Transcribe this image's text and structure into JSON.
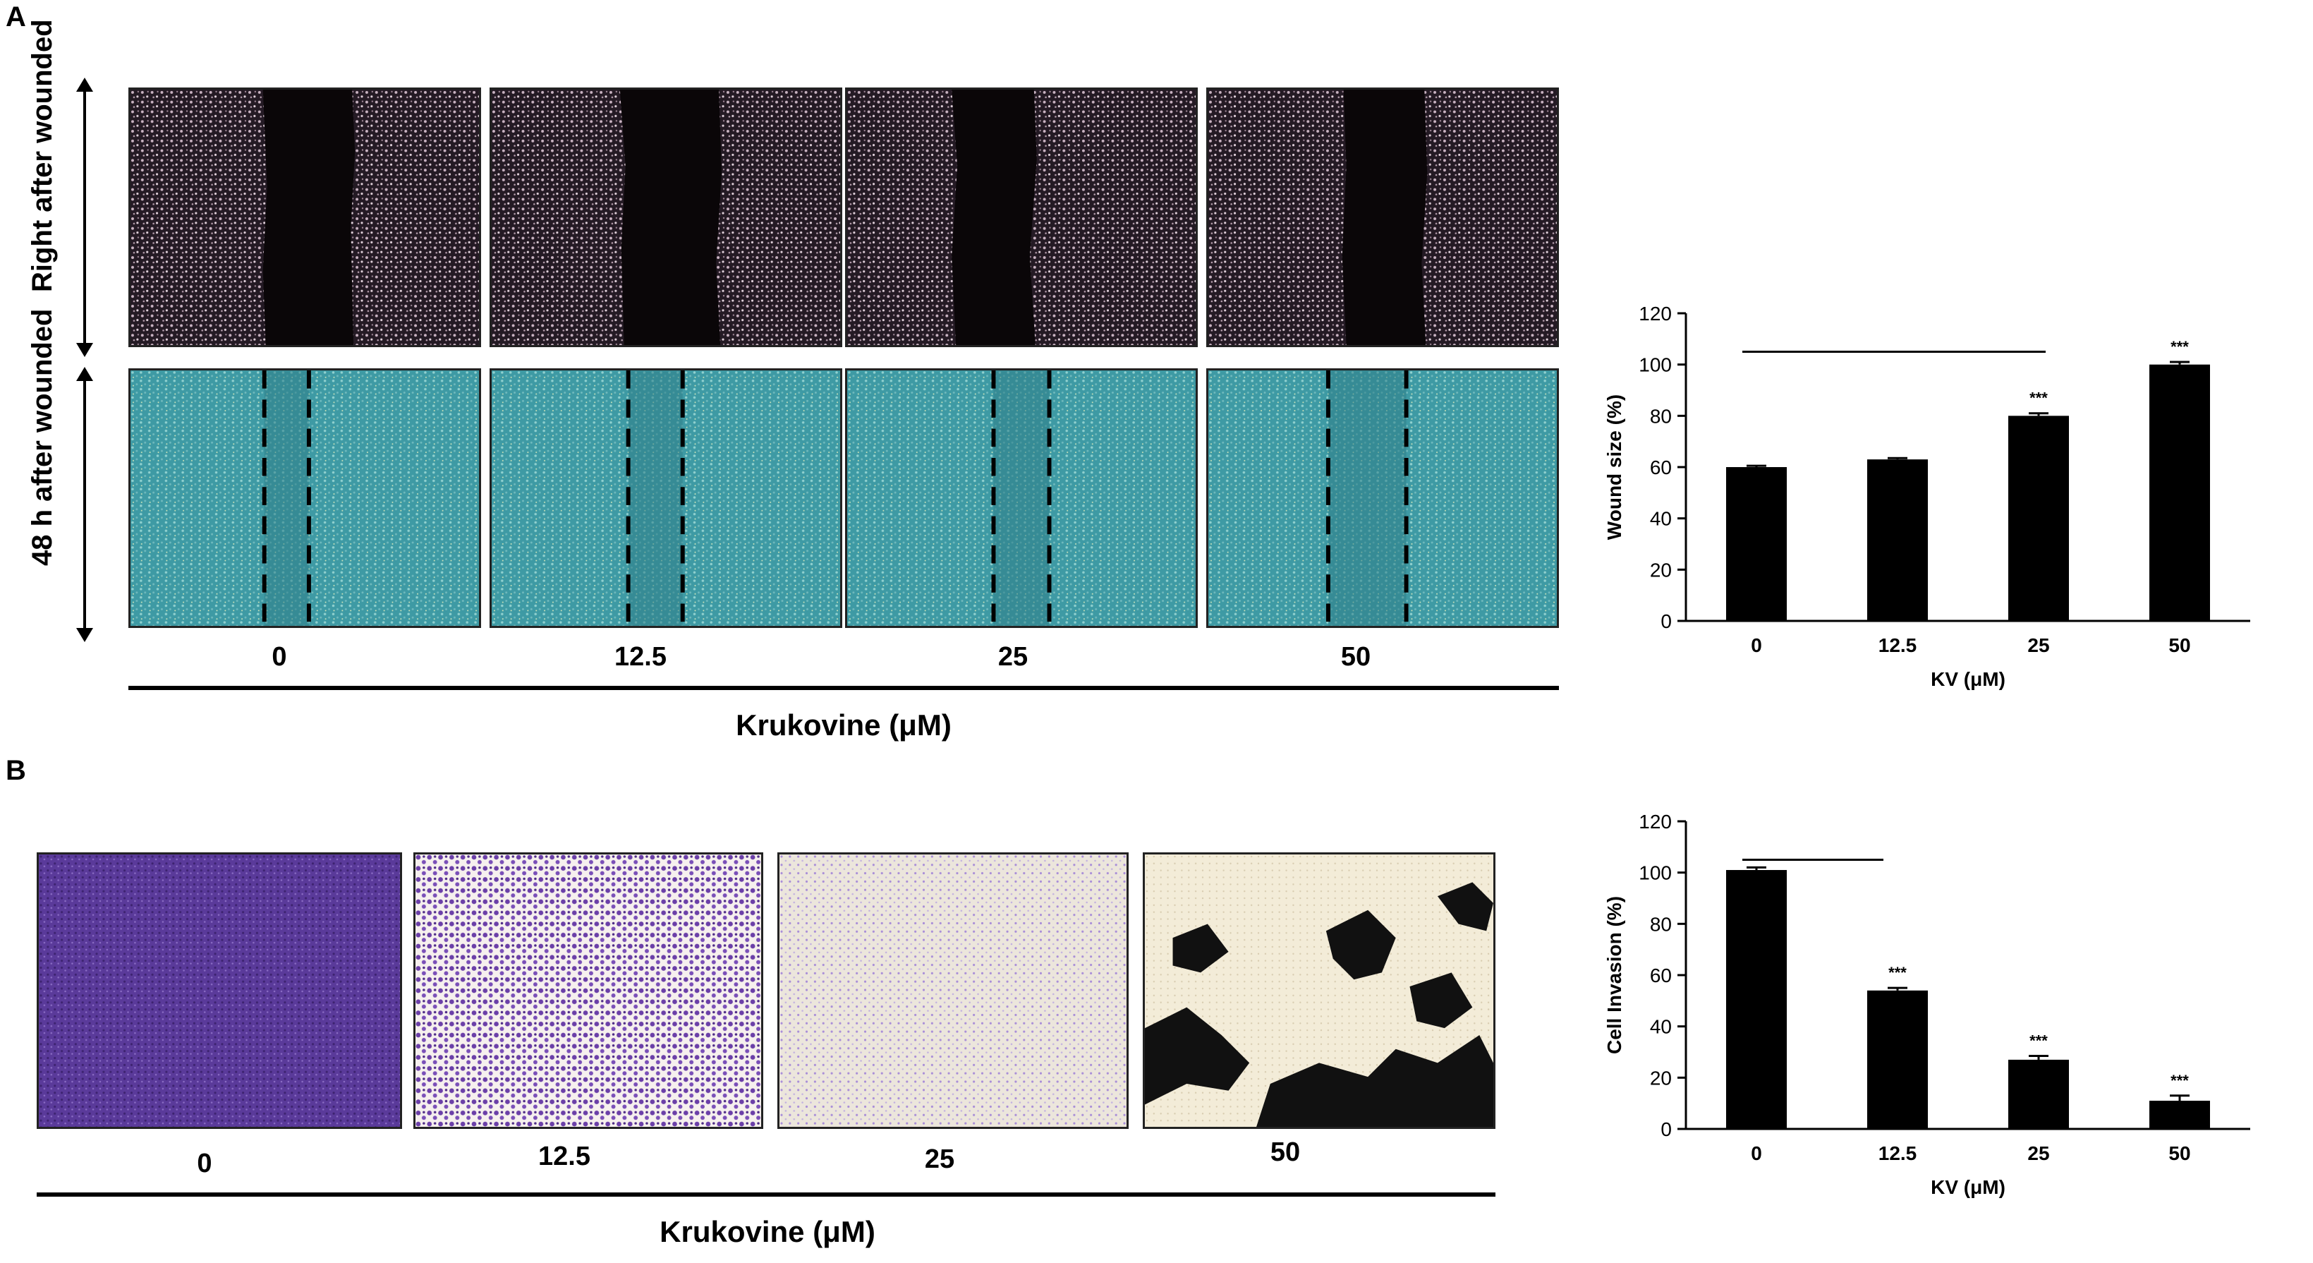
{
  "panel_a": {
    "letter": "A",
    "row_labels": [
      "Right after wounded",
      "48 h after wounded"
    ],
    "concentrations": [
      "0",
      "12.5",
      "25",
      "50"
    ],
    "axis_title": "Krukovine (μM)"
  },
  "panel_b": {
    "letter": "B",
    "concentrations": [
      "0",
      "12.5",
      "25",
      "50"
    ],
    "axis_title": "Krukovine (μM)"
  },
  "colors": {
    "scratch_dark": "#0a0608",
    "scratch_cells": "#c9b3c2",
    "healed_bg": "#3e9aa4",
    "healed_cells": "#8fd0cf",
    "crystal_violet": "#5a3a9a",
    "crystal_violet_light": "#a98ed8",
    "bar": "#000000"
  },
  "chart_data": [
    {
      "type": "bar",
      "categories": [
        "0",
        "12.5",
        "25",
        "50"
      ],
      "values": [
        60,
        63,
        80,
        100
      ],
      "errors": [
        0.5,
        0.5,
        1,
        1
      ],
      "significance": [
        "",
        "",
        "***",
        "***"
      ],
      "xlabel": "KV (μM)",
      "ylabel": "Wound size (%)",
      "ylim": [
        0,
        120
      ],
      "yticks": [
        0,
        20,
        40,
        60,
        80,
        100,
        120
      ]
    },
    {
      "type": "bar",
      "categories": [
        "0",
        "12.5",
        "25",
        "50"
      ],
      "values": [
        101,
        54,
        27,
        11
      ],
      "errors": [
        1,
        1,
        1.5,
        2
      ],
      "significance": [
        "",
        "***",
        "***",
        "***"
      ],
      "xlabel": "KV (μM)",
      "ylabel": "Cell Invasion (%)",
      "ylim": [
        0,
        120
      ],
      "yticks": [
        0,
        20,
        40,
        60,
        80,
        100,
        120
      ]
    }
  ]
}
